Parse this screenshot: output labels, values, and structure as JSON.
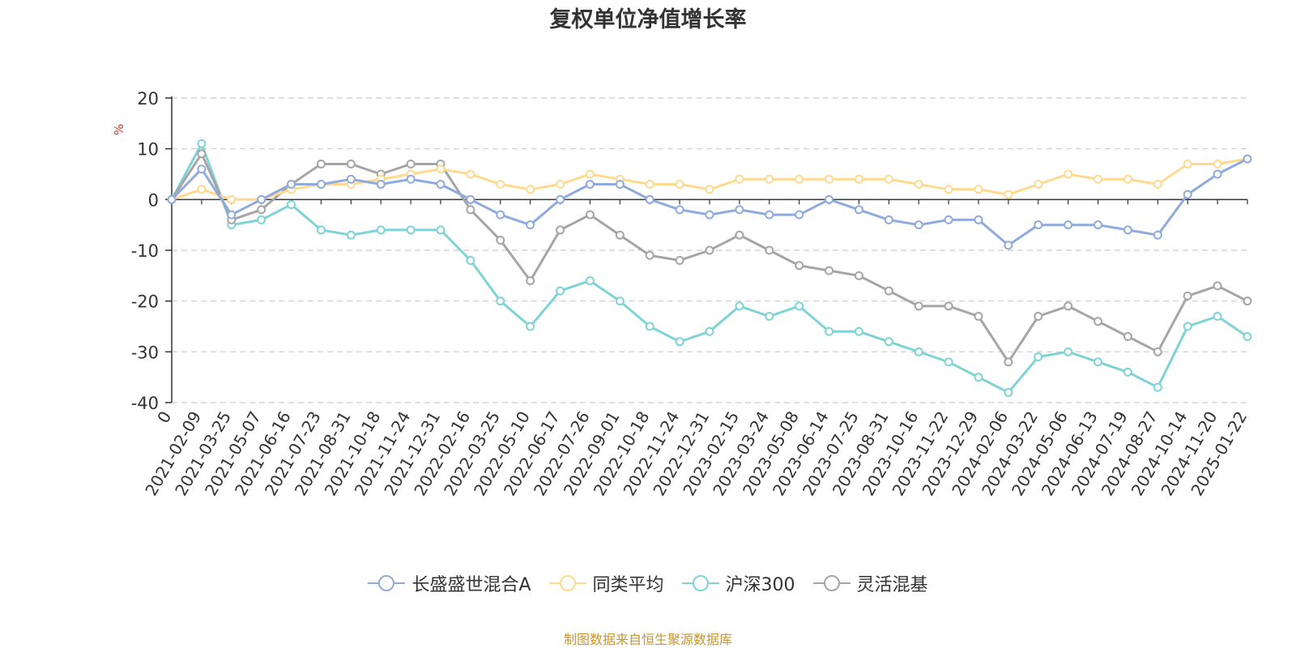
{
  "chart_data": {
    "type": "line",
    "title": "复权单位净值增长率",
    "ylabel": "%",
    "xlabel": "",
    "ylim": [
      -40,
      20
    ],
    "yticks": [
      20,
      10,
      0,
      -10,
      -20,
      -30,
      -40
    ],
    "grid": true,
    "legend_position": "bottom-center",
    "categories": [
      "0",
      "2021-02-09",
      "2021-03-25",
      "2021-05-07",
      "2021-06-16",
      "2021-07-23",
      "2021-08-31",
      "2021-10-18",
      "2021-11-24",
      "2021-12-31",
      "2022-02-16",
      "2022-03-25",
      "2022-05-10",
      "2022-06-17",
      "2022-07-26",
      "2022-09-01",
      "2022-10-18",
      "2022-11-24",
      "2022-12-31",
      "2023-02-15",
      "2023-03-24",
      "2023-05-08",
      "2023-06-14",
      "2023-07-25",
      "2023-08-31",
      "2023-10-16",
      "2023-11-22",
      "2023-12-29",
      "2024-02-06",
      "2024-03-22",
      "2024-05-06",
      "2024-06-13",
      "2024-07-19",
      "2024-08-27",
      "2024-10-14",
      "2024-11-20",
      "2025-01-22"
    ],
    "series": [
      {
        "name": "长盛盛世混合A",
        "color": "#8FAADC",
        "values": [
          0,
          6,
          -3,
          0,
          3,
          3,
          4,
          3,
          4,
          3,
          0,
          -3,
          -5,
          0,
          3,
          3,
          0,
          -2,
          -3,
          -2,
          -3,
          -3,
          0,
          -2,
          -4,
          -5,
          -4,
          -4,
          -9,
          -5,
          -5,
          -5,
          -6,
          -7,
          1,
          5,
          8
        ]
      },
      {
        "name": "同类平均",
        "color": "#FFD98E",
        "values": [
          0,
          2,
          0,
          0,
          2,
          3,
          3,
          4,
          5,
          6,
          5,
          3,
          2,
          3,
          5,
          4,
          3,
          3,
          2,
          4,
          4,
          4,
          4,
          4,
          4,
          3,
          2,
          2,
          1,
          3,
          5,
          4,
          4,
          3,
          7,
          7,
          8
        ]
      },
      {
        "name": "沪深300",
        "color": "#7ED3D7",
        "values": [
          0,
          11,
          -5,
          -4,
          -1,
          -6,
          -7,
          -6,
          -6,
          -6,
          -12,
          -20,
          -25,
          -18,
          -16,
          -20,
          -25,
          -28,
          -26,
          -21,
          -23,
          -21,
          -26,
          -26,
          -28,
          -30,
          -32,
          -35,
          -38,
          -31,
          -30,
          -32,
          -34,
          -37,
          -25,
          -23,
          -27
        ]
      },
      {
        "name": "灵活混基",
        "color": "#A5A5A5",
        "values": [
          0,
          9,
          -4,
          -2,
          3,
          7,
          7,
          5,
          7,
          7,
          -2,
          -8,
          -16,
          -6,
          -3,
          -7,
          -11,
          -12,
          -10,
          -7,
          -10,
          -13,
          -14,
          -15,
          -18,
          -21,
          -21,
          -23,
          -32,
          -23,
          -21,
          -24,
          -27,
          -30,
          -19,
          -17,
          -20
        ]
      }
    ]
  },
  "legend": {
    "items": [
      "长盛盛世混合A",
      "同类平均",
      "沪深300",
      "灵活混基"
    ]
  },
  "source_note": "制图数据来自恒生聚源数据库"
}
